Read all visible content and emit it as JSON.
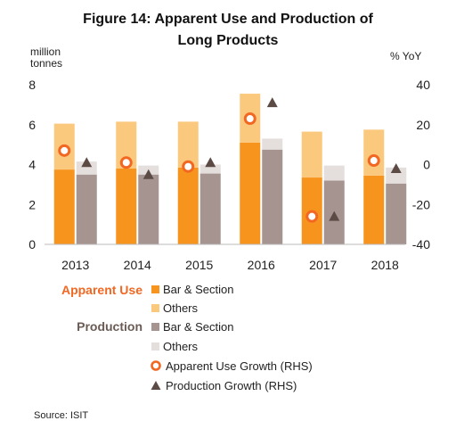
{
  "chart_data": {
    "type": "bar",
    "title": [
      "Figure 14: Apparent Use and Production of",
      "Long Products"
    ],
    "y_left_unit": [
      "million",
      "tonnes"
    ],
    "y_right_unit": "% YoY",
    "categories": [
      "2013",
      "2014",
      "2015",
      "2016",
      "2017",
      "2018"
    ],
    "ylim_left": [
      0,
      8
    ],
    "ylim_right": [
      -40,
      40
    ],
    "y_left_ticks": [
      0,
      2,
      4,
      6,
      8
    ],
    "y_right_ticks": [
      -40,
      -20,
      0,
      20,
      40
    ],
    "grid": false,
    "legend_position": "bottom",
    "series": {
      "apparent_bar_section": [
        3.75,
        3.8,
        3.85,
        5.1,
        3.35,
        3.45
      ],
      "apparent_others": [
        2.3,
        2.35,
        2.3,
        2.45,
        2.3,
        2.3
      ],
      "production_bar_section": [
        3.5,
        3.5,
        3.55,
        4.75,
        3.2,
        3.05
      ],
      "production_others": [
        0.65,
        0.45,
        0.45,
        0.55,
        0.75,
        0.8
      ],
      "apparent_growth_rhs": [
        7,
        1,
        -1,
        23,
        -26,
        2
      ],
      "production_growth_rhs": [
        1,
        -5,
        1,
        31,
        -26,
        -2
      ]
    },
    "colors": {
      "apparent_bar_section": "#f7941d",
      "apparent_others": "#fbc97e",
      "production_bar_section": "#a59490",
      "production_others": "#e4dedd",
      "apparent_growth": "#f26722",
      "production_growth": "#5c4b45",
      "group_apparent": "#f26722",
      "group_production": "#6b5b55"
    },
    "legend": {
      "group_apparent": "Apparent Use",
      "group_production": "Production",
      "bar_section": "Bar & Section",
      "others": "Others",
      "apparent_growth": "Apparent Use Growth (RHS)",
      "production_growth": "Production Growth (RHS)"
    },
    "source": "Source: ISIT"
  }
}
